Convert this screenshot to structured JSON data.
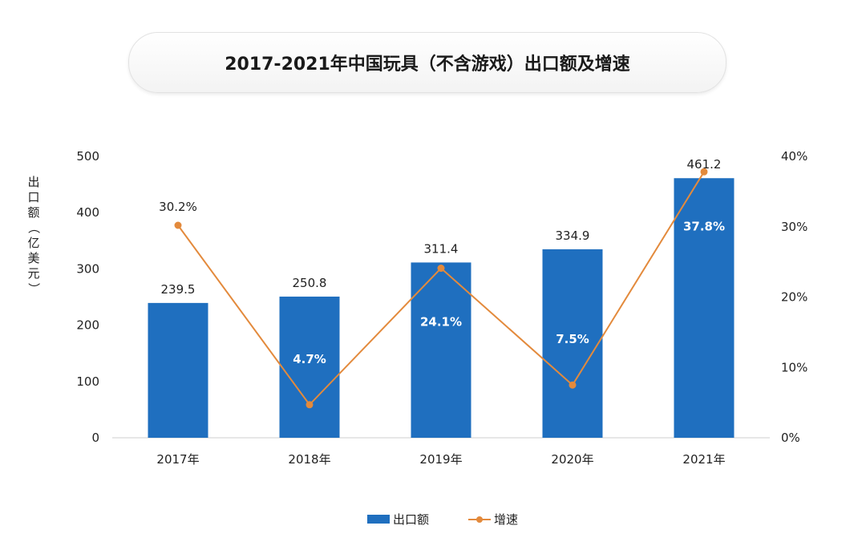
{
  "chart_data": {
    "type": "bar",
    "title": "2017-2021年中国玩具（不含游戏）出口额及增速",
    "categories": [
      "2017年",
      "2018年",
      "2019年",
      "2020年",
      "2021年"
    ],
    "ylabel": "出口额（亿美元）",
    "ylim": [
      0,
      500
    ],
    "yticks": [
      "0",
      "100",
      "200",
      "300",
      "400",
      "500"
    ],
    "y2lim": [
      0,
      40
    ],
    "y2ticks": [
      "0%",
      "10%",
      "20%",
      "30%",
      "40%"
    ],
    "series": [
      {
        "name": "出口额",
        "type": "bar",
        "axis": "left",
        "color": "#1f6fbf",
        "values": [
          239.5,
          250.8,
          311.4,
          334.9,
          461.2
        ],
        "labels": [
          "239.5",
          "250.8",
          "311.4",
          "334.9",
          "461.2"
        ]
      },
      {
        "name": "增速",
        "type": "line",
        "axis": "right",
        "color": "#e38a3c",
        "values": [
          30.2,
          4.7,
          24.1,
          7.5,
          37.8
        ],
        "labels": [
          "30.2%",
          "4.7%",
          "24.1%",
          "7.5%",
          "37.8%"
        ]
      }
    ],
    "grid": false,
    "legend": "bottom-center"
  }
}
